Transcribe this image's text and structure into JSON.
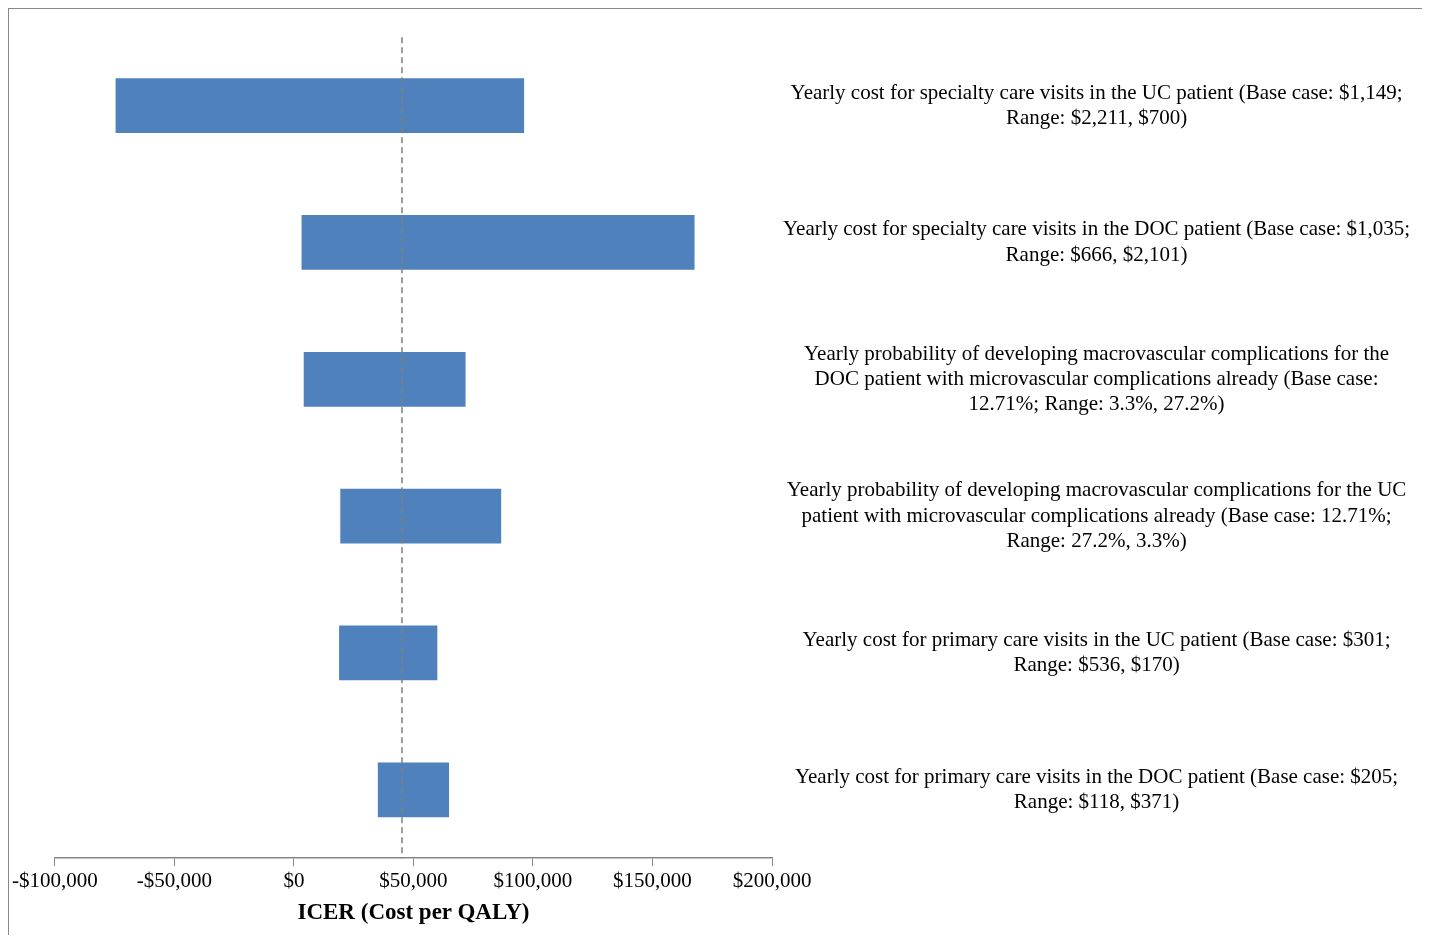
{
  "chart_data": {
    "type": "bar",
    "orientation": "horizontal",
    "xlabel": "ICER (Cost per QALY)",
    "categories": [
      "Yearly cost for specialty care visits in the UC patient (Base case: $1,149; Range: $2,211, $700)",
      "Yearly cost for specialty care visits in the DOC patient (Base case: $1,035; Range: $666, $2,101)",
      "Yearly probability of developing macrovascular complications for the DOC patient with microvascular complications already (Base case: 12.71%; Range: 3.3%, 27.2%)",
      "Yearly probability of developing macrovascular complications for the UC patient with microvascular complications already (Base case: 12.71%; Range: 27.2%, 3.3%)",
      "Yearly cost for primary care visits in the UC patient (Base case: $301; Range: $536, $170)",
      "Yearly cost for primary care visits in the DOC patient (Base case: $205; Range: $118, $371)"
    ],
    "base": [
      -74600,
      3200,
      4100,
      19400,
      18900,
      35100
    ],
    "values": [
      170900,
      164400,
      67700,
      67300,
      41100,
      29800
    ],
    "color": "#4f81bd",
    "xlim": [
      -100000,
      200000
    ],
    "xticks": [
      {
        "value": -100000,
        "label": "-$100,000"
      },
      {
        "value": -50000,
        "label": "-$50,000"
      },
      {
        "value": 0,
        "label": "$0"
      },
      {
        "value": 50000,
        "label": "$50,000"
      },
      {
        "value": 100000,
        "label": "$100,000"
      },
      {
        "value": 150000,
        "label": "$150,000"
      },
      {
        "value": 200000,
        "label": "$200,000"
      }
    ],
    "ref_lines": [
      {
        "axis": "x",
        "value": 45200,
        "color": "#7f7f7f",
        "line_style": "dashed"
      }
    ],
    "grid": false,
    "legend": false
  }
}
